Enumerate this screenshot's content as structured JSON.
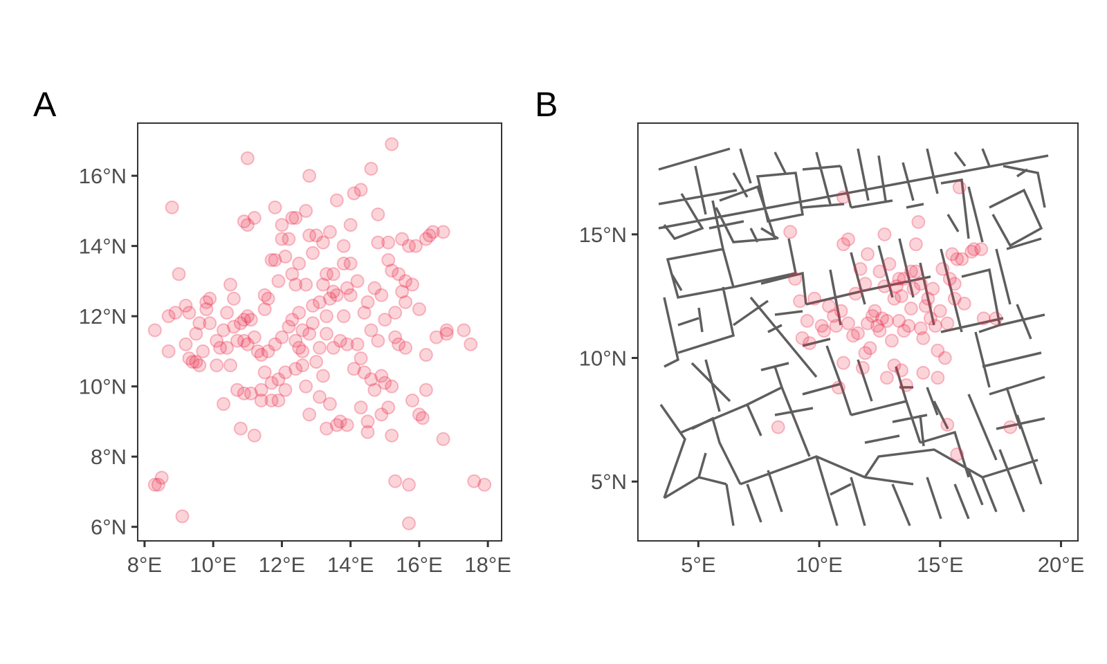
{
  "panel_a": {
    "tag": "A",
    "x_tick_labels": [
      "8°E",
      "10°E",
      "12°E",
      "14°E",
      "16°E",
      "18°E"
    ],
    "y_tick_labels": [
      "6°N",
      "8°N",
      "10°N",
      "12°N",
      "14°N",
      "16°N"
    ]
  },
  "panel_b": {
    "tag": "B",
    "x_tick_labels": [
      "5°E",
      "10°E",
      "15°E",
      "20°E"
    ],
    "y_tick_labels": [
      "5°N",
      "10°N",
      "15°N"
    ]
  },
  "colors": {
    "points": "#ec2a48",
    "streets": "#282828",
    "frame": "#333333",
    "ticks": "#4d4d4d"
  },
  "chart_data": [
    {
      "type": "scatter",
      "panel": "A",
      "xlim": [
        7.8,
        18.4
      ],
      "ylim": [
        5.6,
        17.5
      ],
      "x_ticks": [
        8,
        10,
        12,
        14,
        16,
        18
      ],
      "y_ticks": [
        6,
        8,
        10,
        12,
        14,
        16
      ],
      "grid": false,
      "points": [
        [
          8.3,
          11.6
        ],
        [
          8.4,
          7.2
        ],
        [
          8.3,
          7.2
        ],
        [
          8.5,
          7.4
        ],
        [
          8.7,
          11.0
        ],
        [
          8.8,
          15.1
        ],
        [
          8.7,
          12.0
        ],
        [
          8.9,
          12.1
        ],
        [
          9.0,
          13.2
        ],
        [
          9.1,
          6.3
        ],
        [
          9.2,
          12.3
        ],
        [
          9.2,
          11.2
        ],
        [
          9.3,
          10.8
        ],
        [
          9.3,
          12.1
        ],
        [
          9.4,
          10.7
        ],
        [
          9.5,
          11.5
        ],
        [
          9.5,
          10.7
        ],
        [
          9.6,
          10.6
        ],
        [
          9.6,
          11.8
        ],
        [
          9.7,
          11.0
        ],
        [
          9.8,
          12.4
        ],
        [
          9.8,
          12.2
        ],
        [
          9.9,
          12.5
        ],
        [
          9.9,
          11.8
        ],
        [
          10.1,
          11.3
        ],
        [
          10.1,
          10.6
        ],
        [
          10.2,
          11.1
        ],
        [
          10.3,
          11.6
        ],
        [
          10.4,
          12.1
        ],
        [
          10.4,
          11.1
        ],
        [
          10.5,
          12.9
        ],
        [
          10.5,
          10.6
        ],
        [
          10.3,
          9.5
        ],
        [
          10.6,
          11.7
        ],
        [
          10.6,
          12.5
        ],
        [
          10.7,
          11.3
        ],
        [
          10.7,
          9.9
        ],
        [
          10.8,
          11.8
        ],
        [
          10.8,
          8.8
        ],
        [
          10.9,
          9.8
        ],
        [
          10.9,
          11.9
        ],
        [
          10.9,
          11.3
        ],
        [
          11.0,
          12.0
        ],
        [
          11.0,
          11.2
        ],
        [
          10.9,
          14.7
        ],
        [
          11.0,
          16.5
        ],
        [
          11.0,
          14.6
        ],
        [
          11.1,
          11.9
        ],
        [
          11.1,
          9.8
        ],
        [
          11.2,
          14.8
        ],
        [
          11.2,
          11.4
        ],
        [
          11.2,
          8.6
        ],
        [
          11.3,
          11.0
        ],
        [
          11.4,
          9.6
        ],
        [
          11.4,
          10.9
        ],
        [
          11.4,
          9.9
        ],
        [
          11.5,
          12.6
        ],
        [
          11.5,
          12.2
        ],
        [
          11.5,
          10.4
        ],
        [
          11.6,
          11.0
        ],
        [
          11.6,
          12.5
        ],
        [
          11.7,
          10.1
        ],
        [
          11.7,
          9.6
        ],
        [
          11.7,
          13.6
        ],
        [
          11.8,
          15.1
        ],
        [
          11.8,
          11.2
        ],
        [
          11.8,
          13.6
        ],
        [
          11.9,
          9.6
        ],
        [
          11.9,
          10.2
        ],
        [
          11.9,
          13.0
        ],
        [
          12.0,
          14.6
        ],
        [
          12.0,
          11.4
        ],
        [
          12.0,
          14.2
        ],
        [
          12.1,
          10.4
        ],
        [
          12.1,
          9.9
        ],
        [
          12.1,
          13.7
        ],
        [
          12.2,
          11.7
        ],
        [
          12.2,
          14.2
        ],
        [
          12.3,
          11.9
        ],
        [
          12.3,
          14.8
        ],
        [
          12.3,
          13.2
        ],
        [
          12.4,
          10.5
        ],
        [
          12.4,
          11.3
        ],
        [
          12.4,
          12.9
        ],
        [
          12.4,
          14.8
        ],
        [
          12.5,
          11.1
        ],
        [
          12.5,
          13.5
        ],
        [
          12.5,
          12.1
        ],
        [
          12.6,
          10.6
        ],
        [
          12.6,
          11.6
        ],
        [
          12.6,
          11.0
        ],
        [
          12.7,
          12.9
        ],
        [
          12.7,
          15.0
        ],
        [
          12.7,
          10.0
        ],
        [
          12.8,
          9.2
        ],
        [
          12.8,
          11.5
        ],
        [
          12.8,
          16.0
        ],
        [
          12.8,
          14.3
        ],
        [
          12.9,
          11.8
        ],
        [
          12.9,
          13.8
        ],
        [
          12.9,
          12.3
        ],
        [
          13.0,
          10.7
        ],
        [
          13.0,
          14.3
        ],
        [
          13.1,
          11.1
        ],
        [
          13.1,
          12.4
        ],
        [
          13.1,
          9.7
        ],
        [
          13.2,
          12.9
        ],
        [
          13.2,
          10.3
        ],
        [
          13.2,
          14.1
        ],
        [
          13.3,
          11.5
        ],
        [
          13.3,
          13.2
        ],
        [
          13.3,
          12.0
        ],
        [
          13.3,
          8.8
        ],
        [
          13.4,
          9.5
        ],
        [
          13.4,
          12.5
        ],
        [
          13.4,
          14.4
        ],
        [
          13.5,
          11.1
        ],
        [
          13.5,
          13.2
        ],
        [
          13.5,
          12.7
        ],
        [
          13.6,
          15.3
        ],
        [
          13.6,
          8.9
        ],
        [
          13.6,
          12.6
        ],
        [
          13.7,
          11.3
        ],
        [
          13.7,
          9.0
        ],
        [
          13.8,
          12.0
        ],
        [
          13.8,
          14.0
        ],
        [
          13.8,
          13.5
        ],
        [
          13.9,
          12.8
        ],
        [
          13.9,
          8.9
        ],
        [
          13.9,
          11.2
        ],
        [
          14.0,
          14.6
        ],
        [
          14.0,
          13.5
        ],
        [
          14.0,
          12.6
        ],
        [
          14.1,
          15.5
        ],
        [
          14.1,
          10.5
        ],
        [
          14.2,
          11.2
        ],
        [
          14.2,
          13.0
        ],
        [
          14.3,
          10.8
        ],
        [
          14.3,
          15.6
        ],
        [
          14.3,
          9.4
        ],
        [
          14.4,
          12.1
        ],
        [
          14.4,
          10.4
        ],
        [
          14.5,
          12.4
        ],
        [
          14.5,
          8.7
        ],
        [
          14.5,
          9.0
        ],
        [
          14.6,
          16.2
        ],
        [
          14.6,
          11.6
        ],
        [
          14.6,
          10.2
        ],
        [
          14.7,
          9.9
        ],
        [
          14.7,
          12.8
        ],
        [
          14.8,
          11.3
        ],
        [
          14.8,
          14.1
        ],
        [
          14.8,
          14.9
        ],
        [
          14.9,
          9.2
        ],
        [
          14.9,
          12.6
        ],
        [
          14.9,
          10.3
        ],
        [
          15.0,
          11.9
        ],
        [
          15.0,
          10.1
        ],
        [
          15.1,
          13.6
        ],
        [
          15.1,
          14.1
        ],
        [
          15.1,
          9.4
        ],
        [
          15.2,
          10.0
        ],
        [
          15.2,
          13.3
        ],
        [
          15.2,
          8.6
        ],
        [
          15.2,
          16.9
        ],
        [
          15.3,
          11.4
        ],
        [
          15.3,
          12.1
        ],
        [
          15.3,
          7.3
        ],
        [
          15.4,
          13.2
        ],
        [
          15.4,
          11.2
        ],
        [
          15.5,
          14.2
        ],
        [
          15.5,
          12.7
        ],
        [
          15.6,
          11.1
        ],
        [
          15.6,
          13.0
        ],
        [
          15.6,
          12.4
        ],
        [
          15.7,
          7.2
        ],
        [
          15.7,
          6.1
        ],
        [
          15.7,
          14.0
        ],
        [
          15.8,
          9.6
        ],
        [
          15.8,
          12.9
        ],
        [
          15.9,
          14.0
        ],
        [
          16.0,
          12.2
        ],
        [
          16.0,
          9.2
        ],
        [
          16.1,
          9.1
        ],
        [
          16.2,
          10.9
        ],
        [
          16.2,
          14.2
        ],
        [
          16.2,
          9.9
        ],
        [
          16.3,
          14.3
        ],
        [
          16.4,
          14.4
        ],
        [
          16.5,
          11.4
        ],
        [
          16.7,
          14.4
        ],
        [
          16.8,
          11.5
        ],
        [
          16.8,
          11.6
        ],
        [
          16.7,
          8.5
        ],
        [
          17.3,
          11.6
        ],
        [
          17.5,
          11.2
        ],
        [
          17.6,
          7.3
        ],
        [
          17.9,
          7.2
        ]
      ]
    },
    {
      "type": "scatter",
      "panel": "B",
      "xlim": [
        2.5,
        20.7
      ],
      "ylim": [
        2.6,
        19.5
      ],
      "x_ticks": [
        5,
        10,
        15,
        20
      ],
      "y_ticks": [
        5,
        10,
        15
      ],
      "grid": false,
      "points": [
        [
          8.3,
          7.2
        ],
        [
          8.8,
          15.1
        ],
        [
          9.0,
          13.2
        ],
        [
          9.2,
          12.3
        ],
        [
          9.3,
          10.8
        ],
        [
          9.5,
          11.5
        ],
        [
          9.6,
          10.6
        ],
        [
          9.8,
          12.4
        ],
        [
          10.1,
          11.3
        ],
        [
          10.2,
          11.1
        ],
        [
          10.4,
          12.1
        ],
        [
          10.6,
          11.7
        ],
        [
          10.7,
          11.3
        ],
        [
          10.9,
          11.9
        ],
        [
          11.0,
          9.8
        ],
        [
          11.0,
          16.5
        ],
        [
          11.0,
          14.6
        ],
        [
          11.2,
          11.4
        ],
        [
          11.2,
          14.8
        ],
        [
          11.4,
          10.9
        ],
        [
          11.5,
          12.6
        ],
        [
          11.6,
          11.0
        ],
        [
          11.7,
          13.6
        ],
        [
          11.8,
          9.6
        ],
        [
          11.9,
          10.2
        ],
        [
          12.0,
          11.4
        ],
        [
          12.0,
          14.2
        ],
        [
          12.2,
          11.7
        ],
        [
          12.3,
          11.9
        ],
        [
          12.4,
          11.3
        ],
        [
          12.5,
          11.1
        ],
        [
          12.5,
          13.5
        ],
        [
          12.6,
          11.6
        ],
        [
          12.7,
          12.9
        ],
        [
          12.8,
          11.5
        ],
        [
          12.9,
          13.8
        ],
        [
          13.0,
          10.7
        ],
        [
          13.1,
          12.4
        ],
        [
          13.2,
          12.9
        ],
        [
          13.3,
          11.5
        ],
        [
          13.3,
          13.2
        ],
        [
          13.4,
          12.5
        ],
        [
          13.5,
          11.1
        ],
        [
          13.5,
          13.2
        ],
        [
          13.6,
          8.9
        ],
        [
          13.7,
          11.3
        ],
        [
          13.8,
          12.0
        ],
        [
          13.8,
          13.5
        ],
        [
          13.9,
          12.8
        ],
        [
          14.0,
          14.6
        ],
        [
          14.0,
          13.5
        ],
        [
          14.2,
          11.2
        ],
        [
          14.2,
          13.0
        ],
        [
          14.3,
          10.8
        ],
        [
          14.4,
          12.1
        ],
        [
          14.5,
          12.4
        ],
        [
          14.6,
          11.6
        ],
        [
          14.7,
          12.8
        ],
        [
          14.8,
          11.3
        ],
        [
          14.9,
          10.3
        ],
        [
          15.0,
          11.9
        ],
        [
          15.1,
          13.6
        ],
        [
          15.2,
          10.0
        ],
        [
          15.3,
          11.4
        ],
        [
          15.4,
          13.2
        ],
        [
          15.5,
          14.2
        ],
        [
          15.6,
          12.4
        ],
        [
          15.7,
          14.0
        ],
        [
          15.8,
          16.9
        ],
        [
          15.9,
          14.0
        ],
        [
          16.0,
          12.2
        ],
        [
          16.3,
          14.3
        ],
        [
          16.4,
          14.4
        ],
        [
          16.7,
          14.4
        ],
        [
          16.8,
          11.6
        ],
        [
          17.3,
          11.6
        ],
        [
          17.9,
          7.2
        ],
        [
          15.7,
          6.1
        ],
        [
          15.3,
          7.3
        ],
        [
          12.8,
          9.2
        ],
        [
          13.1,
          9.7
        ],
        [
          11.9,
          13.0
        ],
        [
          10.8,
          8.8
        ],
        [
          12.7,
          15.0
        ],
        [
          14.1,
          15.5
        ],
        [
          14.3,
          9.4
        ],
        [
          14.9,
          9.2
        ],
        [
          13.4,
          9.5
        ],
        [
          12.1,
          10.4
        ],
        [
          15.6,
          13.0
        ]
      ]
    }
  ]
}
